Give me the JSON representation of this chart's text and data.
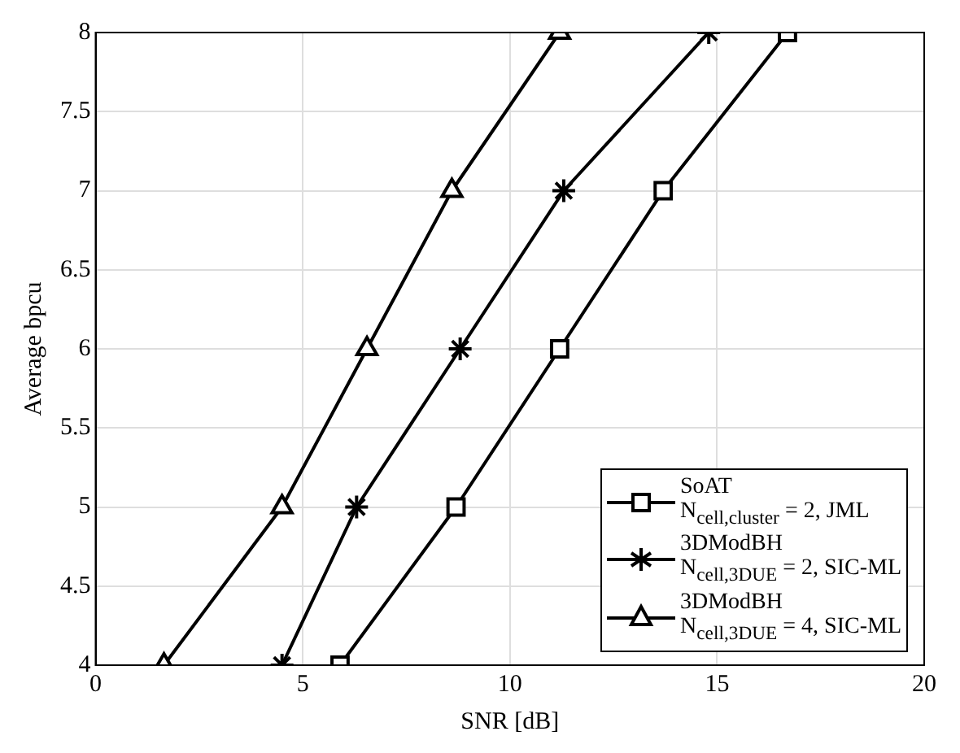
{
  "chart_data": {
    "type": "line",
    "xlabel": "SNR [dB]",
    "ylabel": "Average bpcu",
    "xlim": [
      0,
      20
    ],
    "xticks": [
      0,
      5,
      10,
      15,
      20
    ],
    "ylim": [
      4,
      8
    ],
    "yticks": [
      4,
      4.5,
      5,
      5.5,
      6,
      6.5,
      7,
      7.5,
      8
    ],
    "grid": true,
    "legend": "bottom right",
    "line_style": "solid",
    "series": [
      {
        "name": "SoAT\nN$_{cell,cluster}$ = 2, JML",
        "color": "#000000",
        "marker": "square",
        "x": [
          5.9,
          8.7,
          11.2,
          13.7,
          16.7
        ],
        "values": [
          4,
          5,
          6,
          7,
          8
        ]
      },
      {
        "name": "3DModBH\nN$_{cell,3DUE}$ = 2, SIC-ML",
        "color": "#000000",
        "marker": "cross",
        "x": [
          4.5,
          6.3,
          8.8,
          11.3,
          14.8
        ],
        "values": [
          4,
          5,
          6,
          7,
          8
        ]
      },
      {
        "name": "3DModBH\nN$_{cell,3DUE}$ = 4, SIC-ML",
        "color": "#000000",
        "marker": "triangle",
        "x": [
          1.65,
          4.5,
          6.55,
          8.6,
          11.2
        ],
        "values": [
          4,
          5,
          6,
          7,
          8
        ]
      }
    ]
  }
}
